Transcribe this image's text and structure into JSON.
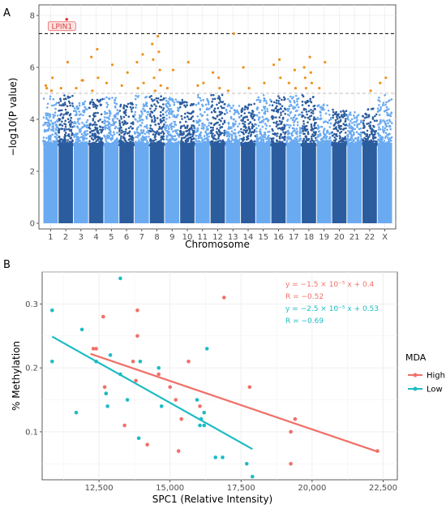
{
  "chart_data": [
    {
      "type": "scatter",
      "panel_label": "A",
      "xlabel": "Chromosome",
      "ylabel": "−log10(P value)",
      "ylim": [
        0,
        8
      ],
      "yticks": [
        0,
        2,
        4,
        6,
        8
      ],
      "categories": [
        "1",
        "2",
        "3",
        "4",
        "5",
        "6",
        "7",
        "8",
        "9",
        "10",
        "11",
        "12",
        "13",
        "14",
        "15",
        "16",
        "17",
        "18",
        "19",
        "20",
        "21",
        "22",
        "X"
      ],
      "colors": {
        "dark": "#2b5c9e",
        "light": "#6aaaf0",
        "highlight": "#f0901c",
        "top_hit": "#e03a3a",
        "label_bg": "#fbe3e3"
      },
      "genome_wide_threshold": 7.3,
      "suggestive_threshold": 5.0,
      "chromosome_peak_max": [
        4.9,
        4.95,
        4.7,
        4.9,
        4.85,
        4.7,
        4.95,
        4.95,
        4.85,
        4.75,
        4.95,
        4.95,
        4.6,
        4.6,
        4.95,
        4.9,
        4.95,
        4.95,
        4.6,
        4.4,
        4.3,
        4.45,
        4.95
      ],
      "significant_points": [
        {
          "chr": "1",
          "y": 5.1
        },
        {
          "chr": "1",
          "y": 5.3
        },
        {
          "chr": "1",
          "y": 5.6
        },
        {
          "chr": "1",
          "y": 5.2
        },
        {
          "chr": "2",
          "y": 7.85,
          "label": "LPIN1"
        },
        {
          "chr": "2",
          "y": 5.2
        },
        {
          "chr": "2",
          "y": 6.2
        },
        {
          "chr": "3",
          "y": 5.5
        },
        {
          "chr": "3",
          "y": 5.2
        },
        {
          "chr": "3",
          "y": 5.5
        },
        {
          "chr": "4",
          "y": 6.7
        },
        {
          "chr": "4",
          "y": 6.4
        },
        {
          "chr": "4",
          "y": 5.6
        },
        {
          "chr": "4",
          "y": 5.1
        },
        {
          "chr": "5",
          "y": 6.1
        },
        {
          "chr": "5",
          "y": 5.4
        },
        {
          "chr": "6",
          "y": 5.8
        },
        {
          "chr": "6",
          "y": 5.3
        },
        {
          "chr": "7",
          "y": 6.5
        },
        {
          "chr": "7",
          "y": 6.2
        },
        {
          "chr": "7",
          "y": 5.4
        },
        {
          "chr": "7",
          "y": 5.2
        },
        {
          "chr": "8",
          "y": 7.2
        },
        {
          "chr": "8",
          "y": 6.9
        },
        {
          "chr": "8",
          "y": 6.6
        },
        {
          "chr": "8",
          "y": 6.3
        },
        {
          "chr": "8",
          "y": 5.9
        },
        {
          "chr": "8",
          "y": 5.6
        },
        {
          "chr": "8",
          "y": 5.3
        },
        {
          "chr": "8",
          "y": 5.1
        },
        {
          "chr": "9",
          "y": 5.9
        },
        {
          "chr": "9",
          "y": 5.2
        },
        {
          "chr": "10",
          "y": 6.2
        },
        {
          "chr": "11",
          "y": 5.4
        },
        {
          "chr": "11",
          "y": 5.3
        },
        {
          "chr": "12",
          "y": 5.6
        },
        {
          "chr": "12",
          "y": 5.8
        },
        {
          "chr": "12",
          "y": 5.2
        },
        {
          "chr": "13",
          "y": 7.3
        },
        {
          "chr": "13",
          "y": 5.1
        },
        {
          "chr": "14",
          "y": 5.2
        },
        {
          "chr": "14",
          "y": 6.0
        },
        {
          "chr": "15",
          "y": 5.4
        },
        {
          "chr": "16",
          "y": 6.3
        },
        {
          "chr": "16",
          "y": 6.1
        },
        {
          "chr": "16",
          "y": 5.6
        },
        {
          "chr": "17",
          "y": 5.9
        },
        {
          "chr": "17",
          "y": 5.4
        },
        {
          "chr": "17",
          "y": 5.2
        },
        {
          "chr": "18",
          "y": 6.4
        },
        {
          "chr": "18",
          "y": 6.0
        },
        {
          "chr": "18",
          "y": 5.8
        },
        {
          "chr": "18",
          "y": 5.6
        },
        {
          "chr": "18",
          "y": 5.4
        },
        {
          "chr": "18",
          "y": 5.2
        },
        {
          "chr": "19",
          "y": 6.2
        },
        {
          "chr": "19",
          "y": 5.2
        },
        {
          "chr": "22",
          "y": 5.1
        },
        {
          "chr": "X",
          "y": 5.6
        },
        {
          "chr": "X",
          "y": 5.4
        }
      ]
    },
    {
      "type": "scatter",
      "panel_label": "B",
      "xlabel": "SPC1 (Relative Intensity)",
      "ylabel": "% Methylation",
      "xlim": [
        10500,
        23000
      ],
      "ylim": [
        0.025,
        0.35
      ],
      "xticks": [
        12500,
        15000,
        17500,
        20000,
        22500
      ],
      "xtick_labels": [
        "12,500",
        "15,000",
        "17,500",
        "20,000",
        "22,500"
      ],
      "yticks": [
        0.1,
        0.2,
        0.3
      ],
      "ytick_labels": [
        "0.1",
        "0.2",
        "0.3"
      ],
      "legend": {
        "title": "MDA",
        "placement": "right",
        "entries": [
          "High",
          "Low"
        ]
      },
      "series": [
        {
          "name": "High",
          "color": "#f07068",
          "points": [
            [
              12300,
              0.23
            ],
            [
              12400,
              0.23
            ],
            [
              12650,
              0.28
            ],
            [
              12700,
              0.17
            ],
            [
              12750,
              0.16
            ],
            [
              13400,
              0.11
            ],
            [
              13700,
              0.21
            ],
            [
              13800,
              0.18
            ],
            [
              13850,
              0.29
            ],
            [
              13850,
              0.25
            ],
            [
              14200,
              0.08
            ],
            [
              14600,
              0.19
            ],
            [
              15000,
              0.17
            ],
            [
              15200,
              0.15
            ],
            [
              15400,
              0.12
            ],
            [
              15650,
              0.21
            ],
            [
              15300,
              0.07
            ],
            [
              16050,
              0.14
            ],
            [
              16900,
              0.31
            ],
            [
              17800,
              0.17
            ],
            [
              19250,
              0.1
            ],
            [
              19250,
              0.05
            ],
            [
              19400,
              0.12
            ],
            [
              22300,
              0.07
            ]
          ],
          "fit": {
            "x": [
              12200,
              22300
            ],
            "y": [
              0.222,
              0.069
            ]
          },
          "annotation": {
            "equation": "y = −1.5 × 10⁻⁵ x + 0.4",
            "r": "R = −0.52"
          }
        },
        {
          "name": "Low",
          "color": "#1cbcc4",
          "points": [
            [
              10850,
              0.29
            ],
            [
              10850,
              0.21
            ],
            [
              11700,
              0.13
            ],
            [
              11900,
              0.26
            ],
            [
              12400,
              0.21
            ],
            [
              12750,
              0.16
            ],
            [
              12800,
              0.14
            ],
            [
              12900,
              0.22
            ],
            [
              13250,
              0.19
            ],
            [
              13250,
              0.34
            ],
            [
              13500,
              0.15
            ],
            [
              13900,
              0.09
            ],
            [
              13950,
              0.21
            ],
            [
              14600,
              0.2
            ],
            [
              14700,
              0.14
            ],
            [
              15950,
              0.15
            ],
            [
              16050,
              0.11
            ],
            [
              16100,
              0.12
            ],
            [
              16200,
              0.13
            ],
            [
              16200,
              0.11
            ],
            [
              16300,
              0.23
            ],
            [
              16600,
              0.06
            ],
            [
              16850,
              0.06
            ],
            [
              17700,
              0.05
            ],
            [
              17900,
              0.03
            ]
          ],
          "fit": {
            "x": [
              10850,
              17900
            ],
            "y": [
              0.249,
              0.073
            ]
          },
          "annotation": {
            "equation": "y = −2.5 × 10⁻⁵ x + 0.53",
            "r": "R = −0.69"
          }
        }
      ]
    }
  ]
}
